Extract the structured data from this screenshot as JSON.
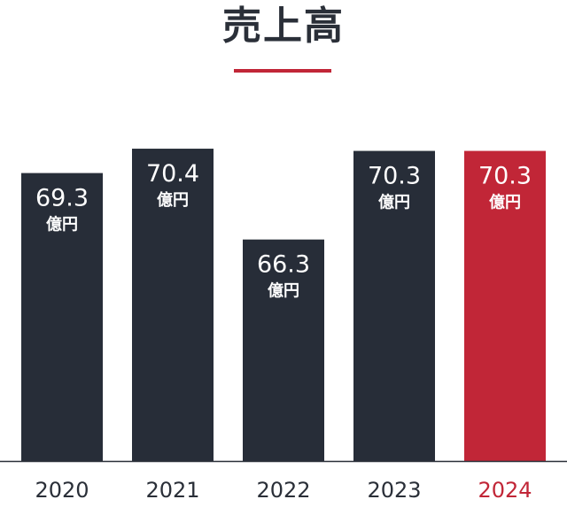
{
  "colors": {
    "bar": "#272d38",
    "highlight": "#c12637",
    "title": "#2a2f38",
    "label_on_bar": "#ffffff",
    "axis_line": "#2a2f38"
  },
  "chart_data": {
    "type": "bar",
    "title": "売上高",
    "categories": [
      "2020",
      "2021",
      "2022",
      "2023",
      "2024"
    ],
    "values": [
      69.3,
      70.4,
      66.3,
      70.3,
      70.3
    ],
    "value_labels": [
      "69.3",
      "70.4",
      "66.3",
      "70.3",
      "70.3"
    ],
    "unit": "億円",
    "highlight_category": "2024",
    "ylim": [
      56.3,
      71.8
    ],
    "grid": false,
    "legend": "none"
  }
}
